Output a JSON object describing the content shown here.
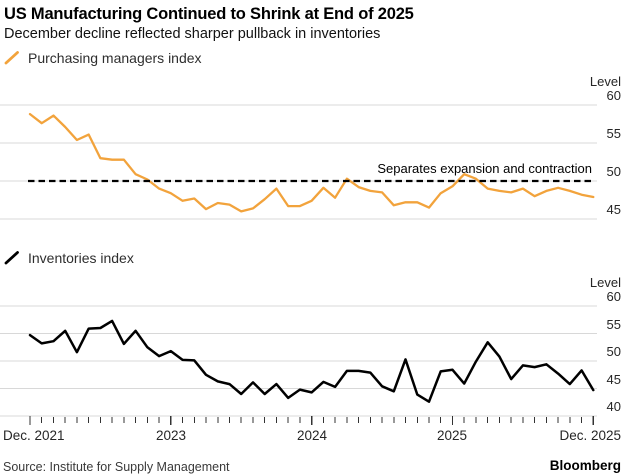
{
  "header": {
    "title": "US Manufacturing Continued to Shrink at End of 2025",
    "subtitle": "December decline reflected sharper pullback in inventories"
  },
  "months": [
    "2021-12",
    "2022-01",
    "2022-02",
    "2022-03",
    "2022-04",
    "2022-05",
    "2022-06",
    "2022-07",
    "2022-08",
    "2022-09",
    "2022-10",
    "2022-11",
    "2022-12",
    "2023-01",
    "2023-02",
    "2023-03",
    "2023-04",
    "2023-05",
    "2023-06",
    "2023-07",
    "2023-08",
    "2023-09",
    "2023-10",
    "2023-11",
    "2023-12",
    "2024-01",
    "2024-02",
    "2024-03",
    "2024-04",
    "2024-05",
    "2024-06",
    "2024-07",
    "2024-08",
    "2024-09",
    "2024-10",
    "2024-11",
    "2024-12",
    "2025-01",
    "2025-02",
    "2025-03",
    "2025-04",
    "2025-05",
    "2025-06",
    "2025-07",
    "2025-08",
    "2025-09",
    "2025-10",
    "2025-11",
    "2025-12"
  ],
  "chart_data": [
    {
      "type": "line",
      "series_name": "Purchasing managers index",
      "color": "#F2A33C",
      "ylabel": "Level",
      "yticks": [
        60,
        55,
        50,
        45
      ],
      "ylim": [
        44,
        61
      ],
      "grid": true,
      "reference_line": 50,
      "annotation": "Separates expansion and contraction",
      "x_start": "Dec. 2021",
      "x_end": "Dec. 2025",
      "frequency": "monthly",
      "values": [
        58.8,
        57.6,
        58.6,
        57.1,
        55.4,
        56.1,
        53.0,
        52.8,
        52.8,
        50.9,
        50.2,
        49.0,
        48.4,
        47.4,
        47.7,
        46.3,
        47.1,
        46.9,
        46.0,
        46.4,
        47.6,
        49.0,
        46.7,
        46.7,
        47.4,
        49.1,
        47.8,
        50.3,
        49.2,
        48.7,
        48.5,
        46.8,
        47.2,
        47.2,
        46.5,
        48.4,
        49.3,
        50.9,
        50.3,
        49.0,
        48.7,
        48.5,
        49.0,
        48.0,
        48.7,
        49.1,
        48.7,
        48.2,
        47.9
      ]
    },
    {
      "type": "line",
      "series_name": "Inventories index",
      "color": "#000000",
      "ylabel": "Level",
      "yticks": [
        60,
        55,
        50,
        45,
        40
      ],
      "ylim": [
        39,
        61
      ],
      "grid": true,
      "x_start": "Dec. 2021",
      "x_end": "Dec. 2025",
      "frequency": "monthly",
      "values": [
        54.7,
        53.2,
        53.6,
        55.5,
        51.6,
        55.9,
        56.0,
        57.3,
        53.1,
        55.5,
        52.5,
        50.9,
        51.8,
        50.2,
        50.1,
        47.5,
        46.3,
        45.8,
        44.0,
        46.1,
        44.0,
        45.8,
        43.3,
        44.8,
        44.3,
        46.2,
        45.3,
        48.2,
        48.2,
        47.9,
        45.4,
        44.5,
        50.3,
        43.9,
        42.6,
        48.1,
        48.4,
        45.9,
        49.9,
        53.4,
        50.8,
        46.7,
        49.2,
        48.9,
        49.4,
        47.7,
        45.8,
        48.3,
        44.7
      ]
    }
  ],
  "xaxis": {
    "labels": [
      "Dec. 2021",
      "2023",
      "2024",
      "2025",
      "Dec. 2025"
    ]
  },
  "footer": {
    "source": "Source: Institute for Supply Management",
    "brand": "Bloomberg"
  }
}
